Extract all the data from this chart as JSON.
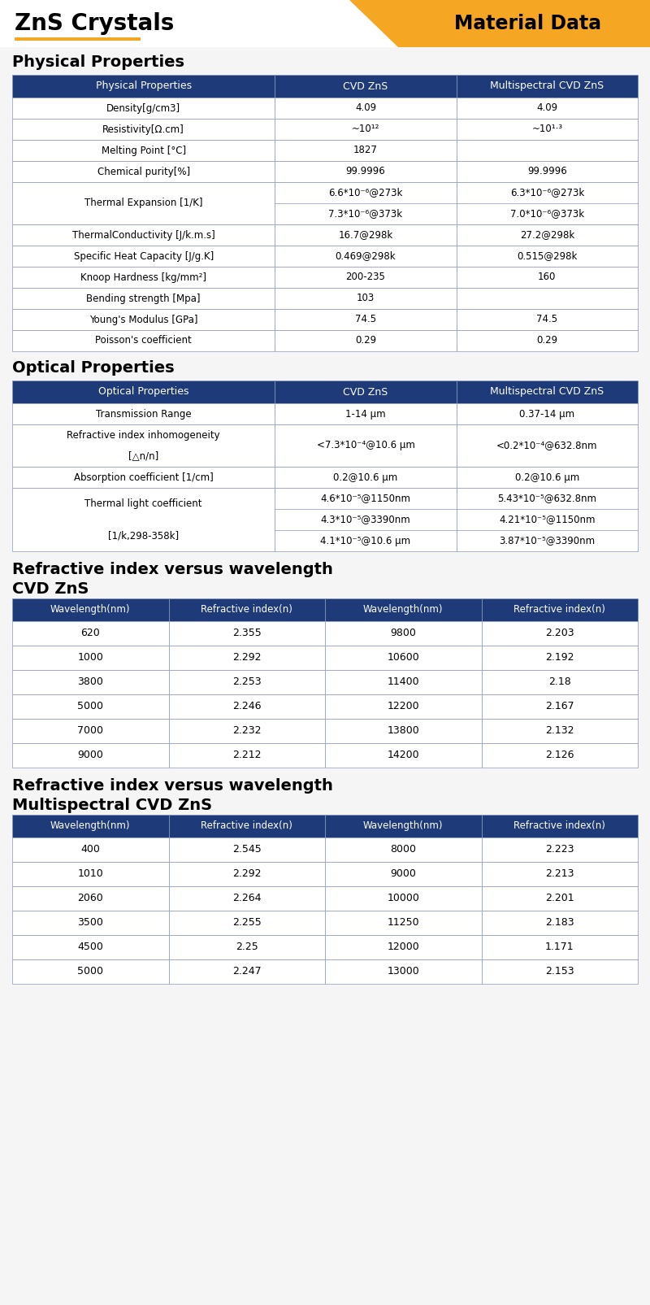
{
  "title_left": "ZnS Crystals",
  "title_right": "Material Data",
  "orange_color": "#f5a623",
  "dark_blue": "#1e3a78",
  "white": "#ffffff",
  "light_gray": "#f0f0f0",
  "border_color": "#8899bb",
  "phys_section": "Physical Properties",
  "phys_headers": [
    "Physical Properties",
    "CVD ZnS",
    "Multispectral CVD ZnS"
  ],
  "phys_rows": [
    [
      "Density[g/cm3]",
      "4.09",
      "4.09"
    ],
    [
      "Resistivity[Ω.cm]",
      "~10¹²",
      "~10¹·³"
    ],
    [
      "Melting Point [°C]",
      "1827",
      ""
    ],
    [
      "Chemical purity[%]",
      "99.9996",
      "99.9996"
    ],
    [
      "Thermal Expansion [1/K]",
      "6.6*10⁻⁶@273k\n7.3*10⁻⁶@373k",
      "6.3*10⁻⁶@273k\n7.0*10⁻⁶@373k"
    ],
    [
      "ThermalConductivity [J/k.m.s]",
      "16.7@298k",
      "27.2@298k"
    ],
    [
      "Specific Heat Capacity [J/g.K]",
      "0.469@298k",
      "0.515@298k"
    ],
    [
      "Knoop Hardness [kg/mm²]",
      "200-235",
      "160"
    ],
    [
      "Bending strength [Mpa]",
      "103",
      ""
    ],
    [
      "Young's Modulus [GPa]",
      "74.5",
      "74.5"
    ],
    [
      "Poisson's coefficient",
      "0.29",
      "0.29"
    ]
  ],
  "opt_section": "Optical Properties",
  "opt_headers": [
    "Optical Properties",
    "CVD ZnS",
    "Multispectral CVD ZnS"
  ],
  "opt_rows": [
    [
      "Transmission Range",
      "1-14 μm",
      "0.37-14 μm"
    ],
    [
      "Refractive index inhomogeneity\n[△n/n]",
      "<7.3*10⁻⁴@10.6 μm",
      "<0.2*10⁻⁴@632.8nm"
    ],
    [
      "Absorption coefficient [1/cm]",
      "0.2@10.6 μm",
      "0.2@10.6 μm"
    ],
    [
      "Thermal light coefficient\n[1/k,298-358k]",
      "4.6*10⁻⁵@1150nm\n4.3*10⁻⁵@3390nm\n4.1*10⁻⁵@10.6 μm",
      "5.43*10⁻⁵@632.8nm\n4.21*10⁻⁵@1150nm\n3.87*10⁻⁵@3390nm"
    ]
  ],
  "ri_cvd_title1": "Refractive index versus wavelength",
  "ri_cvd_title2": "CVD ZnS",
  "ri_cvd_headers": [
    "Wavelength(nm)",
    "Refractive index(n)",
    "Wavelength(nm)",
    "Refractive index(n)"
  ],
  "ri_cvd_rows": [
    [
      "620",
      "2.355",
      "9800",
      "2.203"
    ],
    [
      "1000",
      "2.292",
      "10600",
      "2.192"
    ],
    [
      "3800",
      "2.253",
      "11400",
      "2.18"
    ],
    [
      "5000",
      "2.246",
      "12200",
      "2.167"
    ],
    [
      "7000",
      "2.232",
      "13800",
      "2.132"
    ],
    [
      "9000",
      "2.212",
      "14200",
      "2.126"
    ]
  ],
  "ri_multi_title1": "Refractive index versus wavelength",
  "ri_multi_title2": "Multispectral CVD ZnS",
  "ri_multi_headers": [
    "Wavelength(nm)",
    "Refractive index(n)",
    "Wavelength(nm)",
    "Refractive index(n)"
  ],
  "ri_multi_rows": [
    [
      "400",
      "2.545",
      "8000",
      "2.223"
    ],
    [
      "1010",
      "2.292",
      "9000",
      "2.213"
    ],
    [
      "2060",
      "2.264",
      "10000",
      "2.201"
    ],
    [
      "3500",
      "2.255",
      "11250",
      "2.183"
    ],
    [
      "4500",
      "2.25",
      "12000",
      "1.171"
    ],
    [
      "5000",
      "2.247",
      "13000",
      "2.153"
    ]
  ]
}
